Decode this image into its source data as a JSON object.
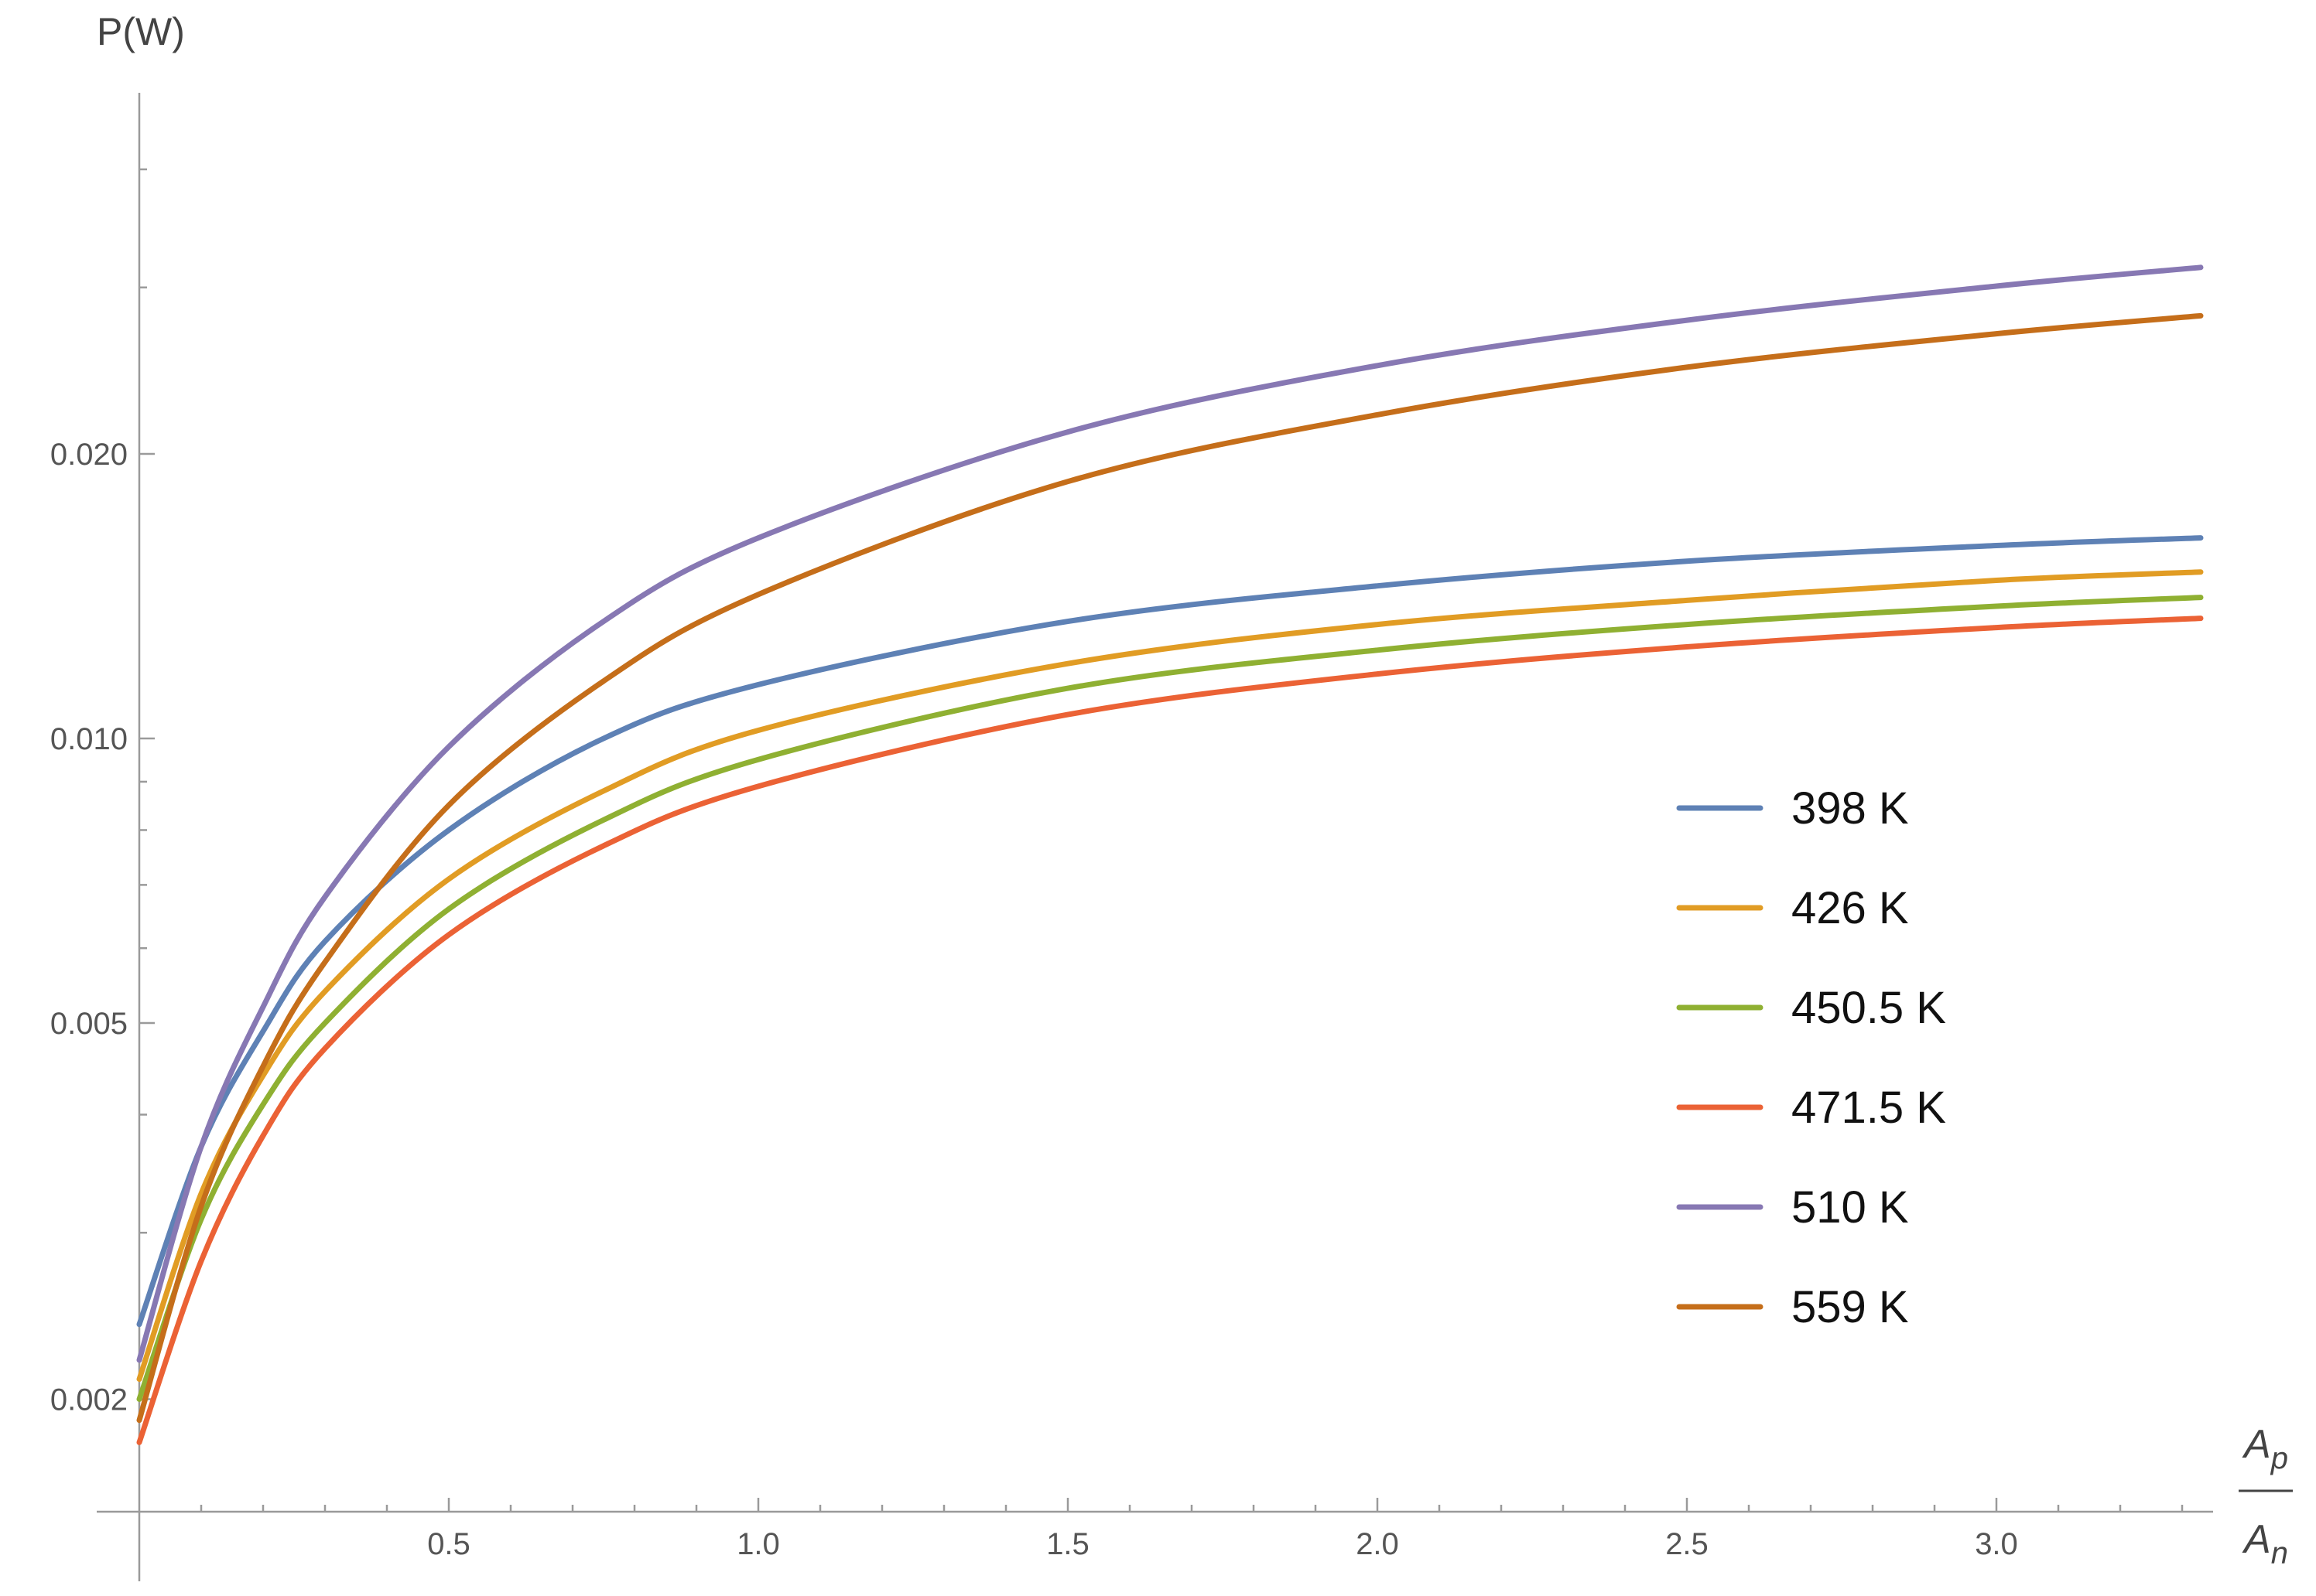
{
  "chart_data": {
    "type": "line",
    "title": "",
    "ylabel": "P(W)",
    "xlabel_numerator": "A",
    "xlabel_numerator_sub": "p",
    "xlabel_denominator": "A",
    "xlabel_denominator_sub": "n",
    "xlim": [
      0,
      3.33
    ],
    "y_scale": "log",
    "ylim": [
      0.00165,
      0.048
    ],
    "x_ticks": [
      {
        "value": 0.5,
        "label": "0.5"
      },
      {
        "value": 1.0,
        "label": "1.0"
      },
      {
        "value": 1.5,
        "label": "1.5"
      },
      {
        "value": 2.0,
        "label": "2.0"
      },
      {
        "value": 2.5,
        "label": "2.5"
      },
      {
        "value": 3.0,
        "label": "3.0"
      }
    ],
    "y_ticks": [
      {
        "value": 0.002,
        "label": "0.002"
      },
      {
        "value": 0.005,
        "label": "0.005"
      },
      {
        "value": 0.01,
        "label": "0.010"
      },
      {
        "value": 0.02,
        "label": "0.020"
      }
    ],
    "legend_position": "right",
    "series": [
      {
        "name": "398 K",
        "color": "#5E81B5",
        "x": [
          0.0,
          0.1,
          0.2,
          0.3,
          0.5,
          0.75,
          1.0,
          1.5,
          2.0,
          2.5,
          3.0,
          3.33
        ],
        "y": [
          0.0024,
          0.0037,
          0.0049,
          0.0061,
          0.008,
          0.01,
          0.0114,
          0.0133,
          0.0145,
          0.0154,
          0.016,
          0.0163
        ]
      },
      {
        "name": "426 K",
        "color": "#E19C24",
        "x": [
          0.0,
          0.1,
          0.2,
          0.3,
          0.5,
          0.75,
          1.0,
          1.5,
          2.0,
          2.5,
          3.0,
          3.33
        ],
        "y": [
          0.0021,
          0.0033,
          0.0044,
          0.0054,
          0.0071,
          0.0088,
          0.0102,
          0.012,
          0.0132,
          0.014,
          0.0147,
          0.015
        ]
      },
      {
        "name": "450.5 K",
        "color": "#8FB032",
        "x": [
          0.0,
          0.1,
          0.2,
          0.3,
          0.5,
          0.75,
          1.0,
          1.5,
          2.0,
          2.5,
          3.0,
          3.33
        ],
        "y": [
          0.002,
          0.0031,
          0.0041,
          0.005,
          0.0066,
          0.0082,
          0.0095,
          0.0113,
          0.0124,
          0.0132,
          0.0138,
          0.0141
        ]
      },
      {
        "name": "471.5 K",
        "color": "#EB6235",
        "x": [
          0.0,
          0.1,
          0.2,
          0.3,
          0.5,
          0.75,
          1.0,
          1.5,
          2.0,
          2.5,
          3.0,
          3.33
        ],
        "y": [
          0.0018,
          0.0028,
          0.0038,
          0.0047,
          0.0062,
          0.0077,
          0.0089,
          0.0106,
          0.0117,
          0.0125,
          0.0131,
          0.0134
        ]
      },
      {
        "name": "510 K",
        "color": "#8778B3",
        "x": [
          0.0,
          0.1,
          0.2,
          0.3,
          0.5,
          0.75,
          1.0,
          1.5,
          2.0,
          2.5,
          3.0,
          3.33
        ],
        "y": [
          0.0022,
          0.0037,
          0.0052,
          0.0068,
          0.0098,
          0.0133,
          0.0163,
          0.0211,
          0.0248,
          0.0277,
          0.0301,
          0.0315
        ]
      },
      {
        "name": "559 K",
        "color": "#C56E1A",
        "x": [
          0.0,
          0.1,
          0.2,
          0.3,
          0.5,
          0.75,
          1.0,
          1.5,
          2.0,
          2.5,
          3.0,
          3.33
        ],
        "y": [
          0.0019,
          0.0032,
          0.0045,
          0.0058,
          0.0085,
          0.0115,
          0.0142,
          0.0187,
          0.022,
          0.0247,
          0.0268,
          0.028
        ]
      }
    ]
  }
}
